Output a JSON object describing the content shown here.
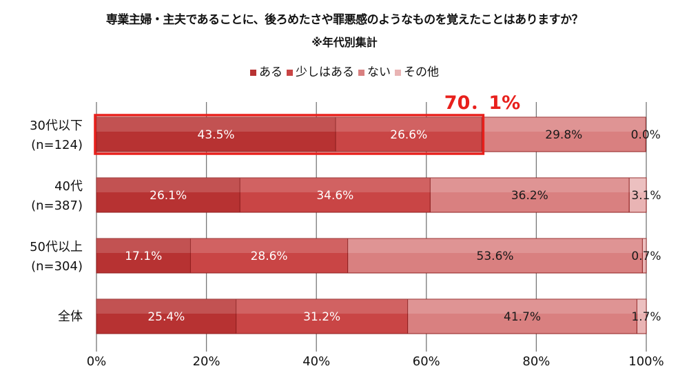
{
  "chart_data": {
    "type": "bar",
    "orientation": "horizontal",
    "stacked": true,
    "title": "専業主婦・主夫であることに、後ろめたさや罪悪感のようなものを覚えたことはありますか？",
    "subtitle": "※年代別集計",
    "categories": [
      "30代以下\n(n=124)",
      "40代\n(n=387)",
      "50代以上\n(n=304)",
      "全体"
    ],
    "series": [
      {
        "name": "ある",
        "color": "#b73232",
        "values": [
          43.5,
          26.1,
          17.1,
          25.4
        ]
      },
      {
        "name": "少しはある",
        "color": "#c94545",
        "values": [
          26.6,
          34.6,
          28.6,
          31.2
        ]
      },
      {
        "name": "ない",
        "color": "#d98080",
        "values": [
          29.8,
          36.2,
          53.6,
          41.7
        ]
      },
      {
        "name": "その他",
        "color": "#e9b4b4",
        "values": [
          0.0,
          3.1,
          0.7,
          1.7
        ]
      }
    ],
    "xlim": [
      0,
      100
    ],
    "xticks": [
      "0%",
      "20%",
      "40%",
      "60%",
      "80%",
      "100%"
    ],
    "grid": true,
    "legend_position": "top",
    "annotation": {
      "text": "70．1%",
      "category_index": 0,
      "value": 70.1,
      "color": "#e8201c"
    }
  }
}
